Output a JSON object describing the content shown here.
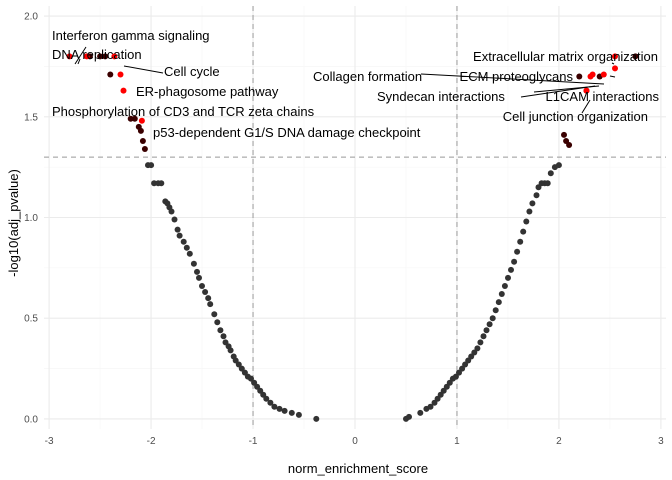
{
  "chart_data": {
    "type": "scatter",
    "title": "",
    "xlabel": "norm_enrichment_score",
    "ylabel": "-log10(adj_pvalue)",
    "xlim": [
      -3.05,
      3.05
    ],
    "ylim": [
      -0.05,
      2.05
    ],
    "x_ticks": [
      -3,
      -2,
      -1,
      0,
      1,
      2,
      3
    ],
    "y_ticks": [
      0.0,
      0.5,
      1.0,
      1.5,
      2.0
    ],
    "x_tick_labels": [
      "-3",
      "-2",
      "-1",
      "0",
      "1",
      "2",
      "3"
    ],
    "y_tick_labels": [
      "0.0",
      "0.5",
      "1.0",
      "1.5",
      "2.0"
    ],
    "grid": true,
    "reference_lines": {
      "vertical": [
        -1,
        1
      ],
      "horizontal": [
        1.3
      ]
    },
    "colors": {
      "point_default": "#333333",
      "point_significant_dark": "#5a0000",
      "point_highlight": "#ff0000",
      "reference_line": "#999999",
      "grid_major": "#ebebeb",
      "grid_minor": "#f5f5f5"
    },
    "annotations": [
      {
        "text": "Interferon gamma signaling",
        "x": -2.8,
        "y": 1.8,
        "color": "#ff0000"
      },
      {
        "text": "DNA replication",
        "x": -2.63,
        "y": 1.8,
        "color": "#ff0000"
      },
      {
        "text": "Cell cycle",
        "x": -2.36,
        "y": 1.8,
        "color": "#ff0000"
      },
      {
        "text": "ER-phagosome pathway",
        "x": -2.3,
        "y": 1.71,
        "color": "#ff0000"
      },
      {
        "text": "Phosphorylation of CD3 and TCR zeta chains",
        "x": -2.27,
        "y": 1.63,
        "color": "#ff0000"
      },
      {
        "text": "p53-dependent G1/S DNA damage checkpoint",
        "x": -2.09,
        "y": 1.48,
        "color": "#ff0000"
      },
      {
        "text": "Extracellular matrix organization",
        "x": 2.55,
        "y": 1.8,
        "color": "#ff0000"
      },
      {
        "text": "Collagen formation",
        "x": 2.44,
        "y": 1.71,
        "color": "#ff0000"
      },
      {
        "text": "ECM proteoglycans",
        "x": 2.55,
        "y": 1.74,
        "color": "#ff0000"
      },
      {
        "text": "Syndecan interactions",
        "x": 2.33,
        "y": 1.71,
        "color": "#ff0000"
      },
      {
        "text": "L1CAM interactions",
        "x": 2.31,
        "y": 1.7,
        "color": "#ff0000"
      },
      {
        "text": "Cell junction organization",
        "x": 2.27,
        "y": 1.63,
        "color": "#ff0000"
      }
    ],
    "series": [
      {
        "points": [
          {
            "x": -2.6,
            "y": 1.8,
            "color": "#3a0000"
          },
          {
            "x": -2.5,
            "y": 1.8,
            "color": "#3a0000"
          },
          {
            "x": -2.45,
            "y": 1.8,
            "color": "#3a0000"
          },
          {
            "x": -2.4,
            "y": 1.71,
            "color": "#3a0000"
          },
          {
            "x": -2.2,
            "y": 1.49,
            "color": "#3a0000"
          },
          {
            "x": -2.16,
            "y": 1.49,
            "color": "#3a0000"
          },
          {
            "x": -2.12,
            "y": 1.45,
            "color": "#3a0000"
          },
          {
            "x": -2.1,
            "y": 1.43,
            "color": "#3a0000"
          },
          {
            "x": -2.08,
            "y": 1.38,
            "color": "#3a0000"
          },
          {
            "x": -2.06,
            "y": 1.34,
            "color": "#3a0000"
          },
          {
            "x": 2.75,
            "y": 1.8,
            "color": "#3a0000"
          },
          {
            "x": 2.2,
            "y": 1.7,
            "color": "#3a0000"
          },
          {
            "x": 2.4,
            "y": 1.7,
            "color": "#3a0000"
          },
          {
            "x": 2.27,
            "y": 1.63,
            "color": "#3a0000"
          },
          {
            "x": 2.05,
            "y": 1.41,
            "color": "#3a0000"
          },
          {
            "x": 2.07,
            "y": 1.38,
            "color": "#3a0000"
          },
          {
            "x": 2.1,
            "y": 1.36,
            "color": "#3a0000"
          },
          {
            "x": -2.03,
            "y": 1.26
          },
          {
            "x": -2.0,
            "y": 1.26
          },
          {
            "x": -1.97,
            "y": 1.17
          },
          {
            "x": -1.93,
            "y": 1.17
          },
          {
            "x": -1.9,
            "y": 1.17
          },
          {
            "x": -1.86,
            "y": 1.08
          },
          {
            "x": -1.84,
            "y": 1.07
          },
          {
            "x": -1.82,
            "y": 1.05
          },
          {
            "x": -1.8,
            "y": 1.03
          },
          {
            "x": -1.77,
            "y": 0.99
          },
          {
            "x": -1.74,
            "y": 0.94
          },
          {
            "x": -1.72,
            "y": 0.91
          },
          {
            "x": -1.68,
            "y": 0.88
          },
          {
            "x": -1.65,
            "y": 0.85
          },
          {
            "x": -1.62,
            "y": 0.82
          },
          {
            "x": -1.58,
            "y": 0.77
          },
          {
            "x": -1.55,
            "y": 0.73
          },
          {
            "x": -1.53,
            "y": 0.7
          },
          {
            "x": -1.5,
            "y": 0.66
          },
          {
            "x": -1.47,
            "y": 0.63
          },
          {
            "x": -1.44,
            "y": 0.6
          },
          {
            "x": -1.42,
            "y": 0.57
          },
          {
            "x": -1.38,
            "y": 0.52
          },
          {
            "x": -1.35,
            "y": 0.48
          },
          {
            "x": -1.32,
            "y": 0.44
          },
          {
            "x": -1.29,
            "y": 0.41
          },
          {
            "x": -1.27,
            "y": 0.38
          },
          {
            "x": -1.24,
            "y": 0.36
          },
          {
            "x": -1.22,
            "y": 0.34
          },
          {
            "x": -1.19,
            "y": 0.31
          },
          {
            "x": -1.17,
            "y": 0.29
          },
          {
            "x": -1.14,
            "y": 0.27
          },
          {
            "x": -1.11,
            "y": 0.25
          },
          {
            "x": -1.08,
            "y": 0.23
          },
          {
            "x": -1.05,
            "y": 0.21
          },
          {
            "x": -1.02,
            "y": 0.2
          },
          {
            "x": -0.99,
            "y": 0.18
          },
          {
            "x": -0.96,
            "y": 0.16
          },
          {
            "x": -0.93,
            "y": 0.14
          },
          {
            "x": -0.9,
            "y": 0.12
          },
          {
            "x": -0.87,
            "y": 0.1
          },
          {
            "x": -0.83,
            "y": 0.08
          },
          {
            "x": -0.79,
            "y": 0.06
          },
          {
            "x": -0.74,
            "y": 0.05
          },
          {
            "x": -0.69,
            "y": 0.04
          },
          {
            "x": -0.62,
            "y": 0.03
          },
          {
            "x": -0.55,
            "y": 0.02
          },
          {
            "x": -0.38,
            "y": 0.0
          },
          {
            "x": 0.5,
            "y": 0.0
          },
          {
            "x": 0.53,
            "y": 0.01
          },
          {
            "x": 0.64,
            "y": 0.03
          },
          {
            "x": 0.7,
            "y": 0.05
          },
          {
            "x": 0.74,
            "y": 0.06
          },
          {
            "x": 0.78,
            "y": 0.08
          },
          {
            "x": 0.81,
            "y": 0.1
          },
          {
            "x": 0.84,
            "y": 0.12
          },
          {
            "x": 0.87,
            "y": 0.14
          },
          {
            "x": 0.9,
            "y": 0.16
          },
          {
            "x": 0.93,
            "y": 0.18
          },
          {
            "x": 0.96,
            "y": 0.2
          },
          {
            "x": 0.99,
            "y": 0.21
          },
          {
            "x": 1.02,
            "y": 0.23
          },
          {
            "x": 1.05,
            "y": 0.25
          },
          {
            "x": 1.08,
            "y": 0.27
          },
          {
            "x": 1.11,
            "y": 0.29
          },
          {
            "x": 1.14,
            "y": 0.31
          },
          {
            "x": 1.17,
            "y": 0.33
          },
          {
            "x": 1.2,
            "y": 0.35
          },
          {
            "x": 1.23,
            "y": 0.38
          },
          {
            "x": 1.26,
            "y": 0.41
          },
          {
            "x": 1.29,
            "y": 0.44
          },
          {
            "x": 1.32,
            "y": 0.47
          },
          {
            "x": 1.35,
            "y": 0.5
          },
          {
            "x": 1.38,
            "y": 0.54
          },
          {
            "x": 1.41,
            "y": 0.58
          },
          {
            "x": 1.44,
            "y": 0.62
          },
          {
            "x": 1.47,
            "y": 0.66
          },
          {
            "x": 1.5,
            "y": 0.7
          },
          {
            "x": 1.53,
            "y": 0.74
          },
          {
            "x": 1.56,
            "y": 0.78
          },
          {
            "x": 1.59,
            "y": 0.83
          },
          {
            "x": 1.62,
            "y": 0.88
          },
          {
            "x": 1.65,
            "y": 0.93
          },
          {
            "x": 1.68,
            "y": 0.98
          },
          {
            "x": 1.71,
            "y": 1.03
          },
          {
            "x": 1.74,
            "y": 1.07
          },
          {
            "x": 1.78,
            "y": 1.11
          },
          {
            "x": 1.8,
            "y": 1.15
          },
          {
            "x": 1.83,
            "y": 1.17
          },
          {
            "x": 1.86,
            "y": 1.17
          },
          {
            "x": 1.89,
            "y": 1.17
          },
          {
            "x": 1.92,
            "y": 1.22
          },
          {
            "x": 1.96,
            "y": 1.25
          },
          {
            "x": 2.0,
            "y": 1.26
          }
        ]
      }
    ]
  }
}
